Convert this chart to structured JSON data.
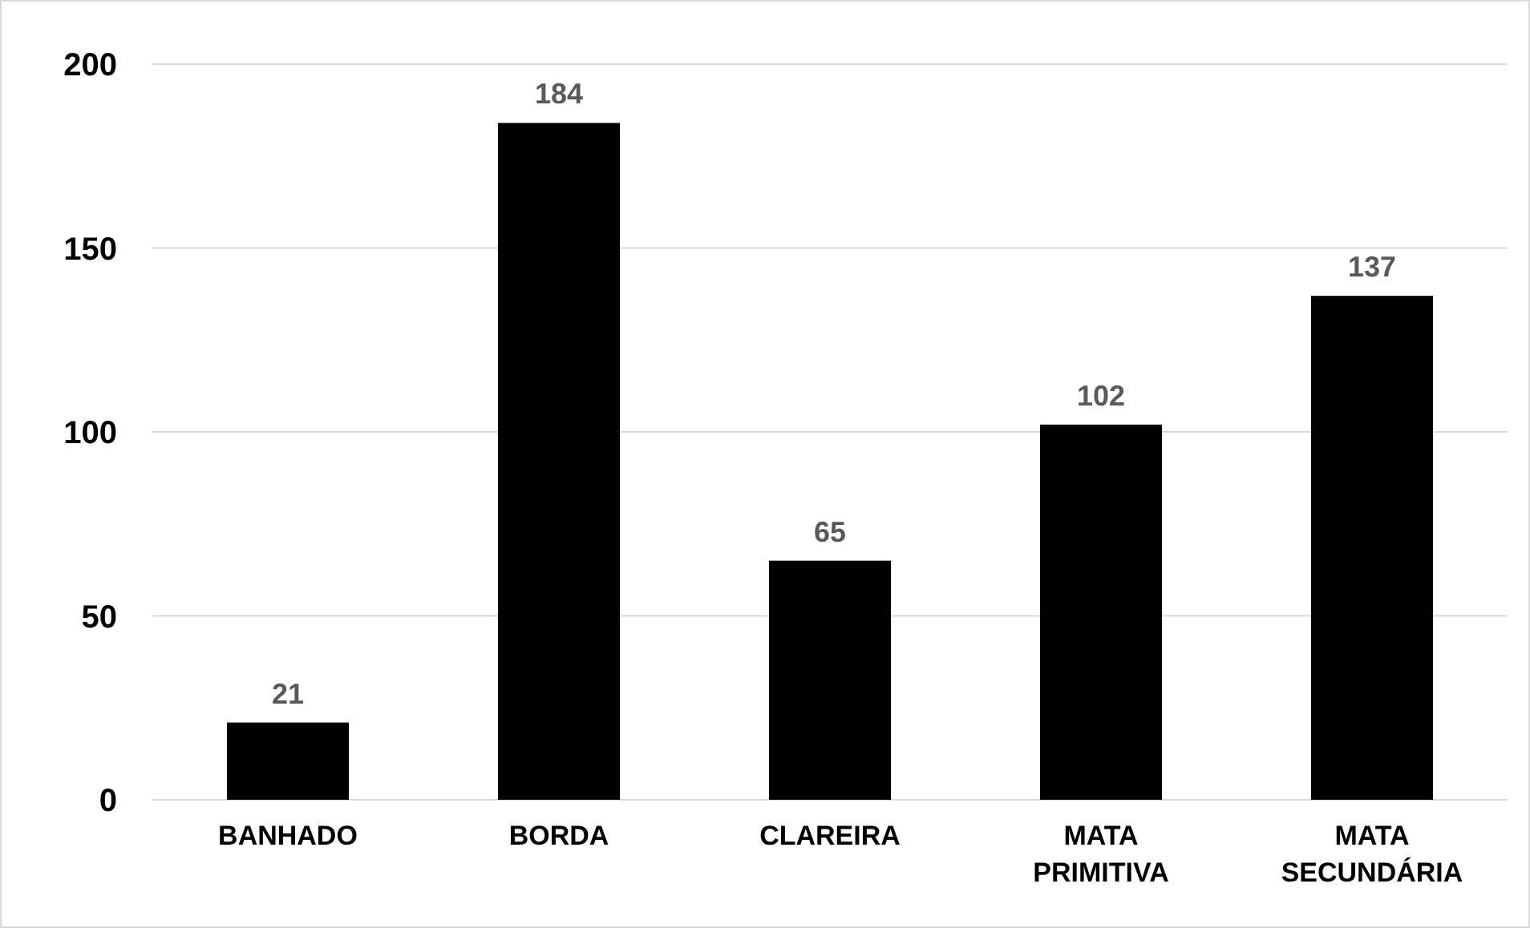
{
  "chart_data": {
    "type": "bar",
    "categories": [
      "BANHADO",
      "BORDA",
      "CLAREIRA",
      "MATA PRIMITIVA",
      "MATA SECUNDÁRIA"
    ],
    "values": [
      21,
      184,
      65,
      102,
      137
    ],
    "color": "#000000",
    "ylim": [
      0,
      200
    ],
    "yticks": [
      0,
      50,
      100,
      150,
      200
    ],
    "grid": "y",
    "data_labels": true
  }
}
